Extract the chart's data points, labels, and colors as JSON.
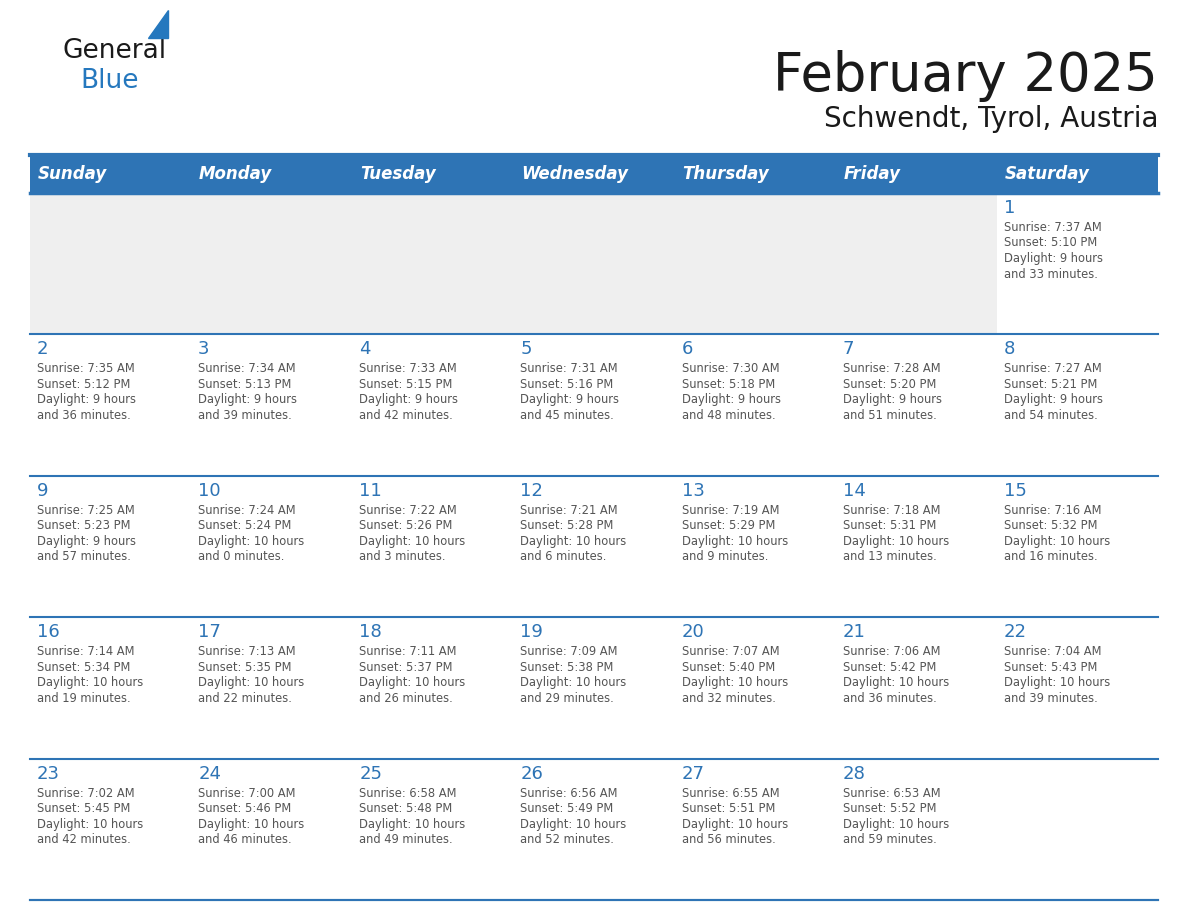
{
  "title": "February 2025",
  "subtitle": "Schwendt, Tyrol, Austria",
  "days_of_week": [
    "Sunday",
    "Monday",
    "Tuesday",
    "Wednesday",
    "Thursday",
    "Friday",
    "Saturday"
  ],
  "header_bg": "#2E74B5",
  "header_text": "#FFFFFF",
  "cell_bg_white": "#FFFFFF",
  "cell_bg_gray": "#EFEFEF",
  "separator_color": "#2E74B5",
  "day_num_color": "#2E74B5",
  "info_text_color": "#555555",
  "title_color": "#1A1A1A",
  "subtitle_color": "#1A1A1A",
  "logo_black": "#1A1A1A",
  "logo_blue": "#2578BE",
  "weeks": [
    [
      {
        "day": null,
        "info": null
      },
      {
        "day": null,
        "info": null
      },
      {
        "day": null,
        "info": null
      },
      {
        "day": null,
        "info": null
      },
      {
        "day": null,
        "info": null
      },
      {
        "day": null,
        "info": null
      },
      {
        "day": 1,
        "info": "Sunrise: 7:37 AM\nSunset: 5:10 PM\nDaylight: 9 hours\nand 33 minutes."
      }
    ],
    [
      {
        "day": 2,
        "info": "Sunrise: 7:35 AM\nSunset: 5:12 PM\nDaylight: 9 hours\nand 36 minutes."
      },
      {
        "day": 3,
        "info": "Sunrise: 7:34 AM\nSunset: 5:13 PM\nDaylight: 9 hours\nand 39 minutes."
      },
      {
        "day": 4,
        "info": "Sunrise: 7:33 AM\nSunset: 5:15 PM\nDaylight: 9 hours\nand 42 minutes."
      },
      {
        "day": 5,
        "info": "Sunrise: 7:31 AM\nSunset: 5:16 PM\nDaylight: 9 hours\nand 45 minutes."
      },
      {
        "day": 6,
        "info": "Sunrise: 7:30 AM\nSunset: 5:18 PM\nDaylight: 9 hours\nand 48 minutes."
      },
      {
        "day": 7,
        "info": "Sunrise: 7:28 AM\nSunset: 5:20 PM\nDaylight: 9 hours\nand 51 minutes."
      },
      {
        "day": 8,
        "info": "Sunrise: 7:27 AM\nSunset: 5:21 PM\nDaylight: 9 hours\nand 54 minutes."
      }
    ],
    [
      {
        "day": 9,
        "info": "Sunrise: 7:25 AM\nSunset: 5:23 PM\nDaylight: 9 hours\nand 57 minutes."
      },
      {
        "day": 10,
        "info": "Sunrise: 7:24 AM\nSunset: 5:24 PM\nDaylight: 10 hours\nand 0 minutes."
      },
      {
        "day": 11,
        "info": "Sunrise: 7:22 AM\nSunset: 5:26 PM\nDaylight: 10 hours\nand 3 minutes."
      },
      {
        "day": 12,
        "info": "Sunrise: 7:21 AM\nSunset: 5:28 PM\nDaylight: 10 hours\nand 6 minutes."
      },
      {
        "day": 13,
        "info": "Sunrise: 7:19 AM\nSunset: 5:29 PM\nDaylight: 10 hours\nand 9 minutes."
      },
      {
        "day": 14,
        "info": "Sunrise: 7:18 AM\nSunset: 5:31 PM\nDaylight: 10 hours\nand 13 minutes."
      },
      {
        "day": 15,
        "info": "Sunrise: 7:16 AM\nSunset: 5:32 PM\nDaylight: 10 hours\nand 16 minutes."
      }
    ],
    [
      {
        "day": 16,
        "info": "Sunrise: 7:14 AM\nSunset: 5:34 PM\nDaylight: 10 hours\nand 19 minutes."
      },
      {
        "day": 17,
        "info": "Sunrise: 7:13 AM\nSunset: 5:35 PM\nDaylight: 10 hours\nand 22 minutes."
      },
      {
        "day": 18,
        "info": "Sunrise: 7:11 AM\nSunset: 5:37 PM\nDaylight: 10 hours\nand 26 minutes."
      },
      {
        "day": 19,
        "info": "Sunrise: 7:09 AM\nSunset: 5:38 PM\nDaylight: 10 hours\nand 29 minutes."
      },
      {
        "day": 20,
        "info": "Sunrise: 7:07 AM\nSunset: 5:40 PM\nDaylight: 10 hours\nand 32 minutes."
      },
      {
        "day": 21,
        "info": "Sunrise: 7:06 AM\nSunset: 5:42 PM\nDaylight: 10 hours\nand 36 minutes."
      },
      {
        "day": 22,
        "info": "Sunrise: 7:04 AM\nSunset: 5:43 PM\nDaylight: 10 hours\nand 39 minutes."
      }
    ],
    [
      {
        "day": 23,
        "info": "Sunrise: 7:02 AM\nSunset: 5:45 PM\nDaylight: 10 hours\nand 42 minutes."
      },
      {
        "day": 24,
        "info": "Sunrise: 7:00 AM\nSunset: 5:46 PM\nDaylight: 10 hours\nand 46 minutes."
      },
      {
        "day": 25,
        "info": "Sunrise: 6:58 AM\nSunset: 5:48 PM\nDaylight: 10 hours\nand 49 minutes."
      },
      {
        "day": 26,
        "info": "Sunrise: 6:56 AM\nSunset: 5:49 PM\nDaylight: 10 hours\nand 52 minutes."
      },
      {
        "day": 27,
        "info": "Sunrise: 6:55 AM\nSunset: 5:51 PM\nDaylight: 10 hours\nand 56 minutes."
      },
      {
        "day": 28,
        "info": "Sunrise: 6:53 AM\nSunset: 5:52 PM\nDaylight: 10 hours\nand 59 minutes."
      },
      {
        "day": null,
        "info": null
      }
    ]
  ]
}
